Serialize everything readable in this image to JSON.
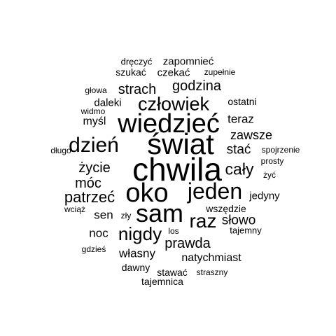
{
  "cloud": {
    "text_color": "#000000",
    "background_color": "#ffffff",
    "words": [
      {
        "key": "chwila",
        "text": "chwila",
        "weight": 1.0
      },
      {
        "key": "swiat",
        "text": "świat",
        "weight": 0.93
      },
      {
        "key": "wiedziec",
        "text": "wiedzieć",
        "weight": 0.9
      },
      {
        "key": "oko",
        "text": "oko",
        "weight": 0.88
      },
      {
        "key": "sam",
        "text": "sam",
        "weight": 0.86
      },
      {
        "key": "jeden",
        "text": "jeden",
        "weight": 0.8
      },
      {
        "key": "raz",
        "text": "raz",
        "weight": 0.6
      },
      {
        "key": "dzien",
        "text": "dzień",
        "weight": 0.6
      },
      {
        "key": "czlowiek",
        "text": "człowiek",
        "weight": 0.58
      },
      {
        "key": "nigdy",
        "text": "nigdy",
        "weight": 0.55
      },
      {
        "key": "caly",
        "text": "cały",
        "weight": 0.5
      },
      {
        "key": "patrzec",
        "text": "patrzeć",
        "weight": 0.48
      },
      {
        "key": "zycie",
        "text": "życie",
        "weight": 0.42
      },
      {
        "key": "moc",
        "text": "móc",
        "weight": 0.42
      },
      {
        "key": "prawda",
        "text": "prawda",
        "weight": 0.42
      },
      {
        "key": "godzina",
        "text": "godzina",
        "weight": 0.42
      },
      {
        "key": "strach",
        "text": "strach",
        "weight": 0.42
      },
      {
        "key": "stac",
        "text": "stać",
        "weight": 0.4
      },
      {
        "key": "slowo",
        "text": "słowo",
        "weight": 0.4
      },
      {
        "key": "zawsze",
        "text": "zawsze",
        "weight": 0.38
      },
      {
        "key": "noc",
        "text": "noc",
        "weight": 0.36
      },
      {
        "key": "sen",
        "text": "sen",
        "weight": 0.36
      },
      {
        "key": "wlasny",
        "text": "własny",
        "weight": 0.36
      },
      {
        "key": "teraz",
        "text": "teraz",
        "weight": 0.36
      },
      {
        "key": "mysl",
        "text": "myśl",
        "weight": 0.34
      },
      {
        "key": "natychmiast",
        "text": "natychmiast",
        "weight": 0.34
      },
      {
        "key": "jedyny",
        "text": "jedyny",
        "weight": 0.3
      },
      {
        "key": "wszedzie",
        "text": "wszędzie",
        "weight": 0.3
      },
      {
        "key": "czekac",
        "text": "czekać",
        "weight": 0.3
      },
      {
        "key": "daleki",
        "text": "daleki",
        "weight": 0.3
      },
      {
        "key": "zapomniec",
        "text": "zapomnieć",
        "weight": 0.3
      },
      {
        "key": "szukac",
        "text": "szukać",
        "weight": 0.28
      },
      {
        "key": "ostatni",
        "text": "ostatni",
        "weight": 0.28
      },
      {
        "key": "stawac",
        "text": "stawać",
        "weight": 0.28
      },
      {
        "key": "dawny",
        "text": "dawny",
        "weight": 0.28
      },
      {
        "key": "tajemny",
        "text": "tajemny",
        "weight": 0.26
      },
      {
        "key": "tajemnica",
        "text": "tajemnica",
        "weight": 0.26
      },
      {
        "key": "dreczyc",
        "text": "dręczyć",
        "weight": 0.25
      },
      {
        "key": "zupelnie",
        "text": "zupełnie",
        "weight": 0.24
      },
      {
        "key": "glowa",
        "text": "głowa",
        "weight": 0.24
      },
      {
        "key": "widmo",
        "text": "widmo",
        "weight": 0.24
      },
      {
        "key": "dlugo",
        "text": "długo",
        "weight": 0.24
      },
      {
        "key": "spojrzenie",
        "text": "spojrzenie",
        "weight": 0.24
      },
      {
        "key": "prosty",
        "text": "prosty",
        "weight": 0.24
      },
      {
        "key": "zyc",
        "text": "żyć",
        "weight": 0.24
      },
      {
        "key": "wciaz",
        "text": "wciąż",
        "weight": 0.24
      },
      {
        "key": "zly",
        "text": "zły",
        "weight": 0.24
      },
      {
        "key": "los",
        "text": "los",
        "weight": 0.24
      },
      {
        "key": "gdzies",
        "text": "gdzieś",
        "weight": 0.24
      },
      {
        "key": "straszny",
        "text": "straszny",
        "weight": 0.24
      }
    ]
  }
}
